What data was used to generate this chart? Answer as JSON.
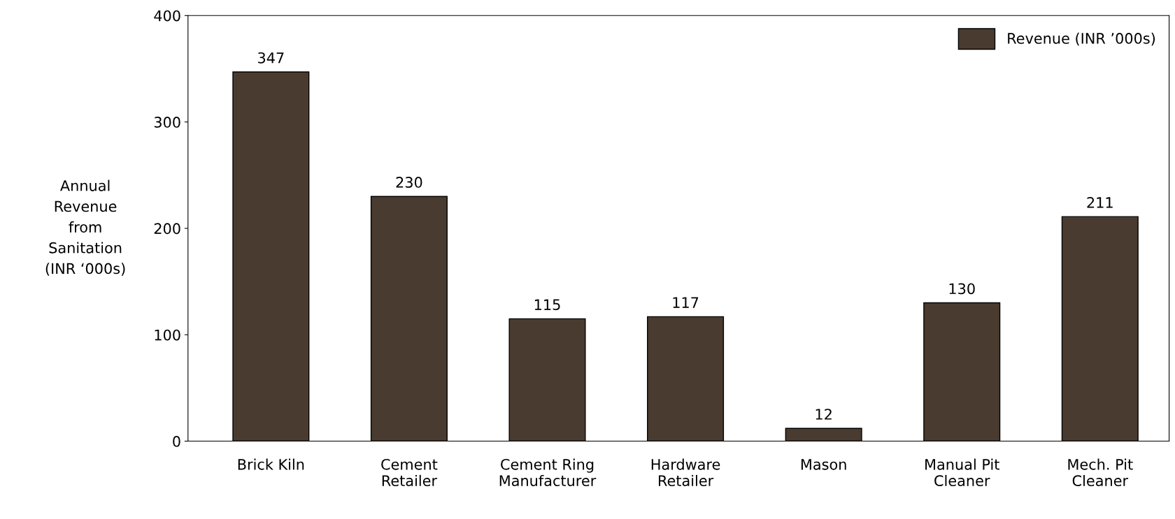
{
  "chart_data": {
    "type": "bar",
    "ylabel": "Annual\nRevenue\nfrom\nSanitation\n(INR ‘000s)",
    "categories": [
      "Brick Kiln",
      "Cement\nRetailer",
      "Cement Ring\nManufacturer",
      "Hardware\nRetailer",
      "Mason",
      "Manual Pit\nCleaner",
      "Mech. Pit\nCleaner"
    ],
    "series": [
      {
        "name": "Revenue (INR ’000s)",
        "color": "#4a3b30",
        "values": [
          347,
          230,
          115,
          117,
          12,
          130,
          211
        ]
      }
    ],
    "ylim": [
      0,
      400
    ],
    "yticks": [
      0,
      100,
      200,
      300,
      400
    ],
    "data_labels": true,
    "grid": false,
    "legend": "top right"
  }
}
